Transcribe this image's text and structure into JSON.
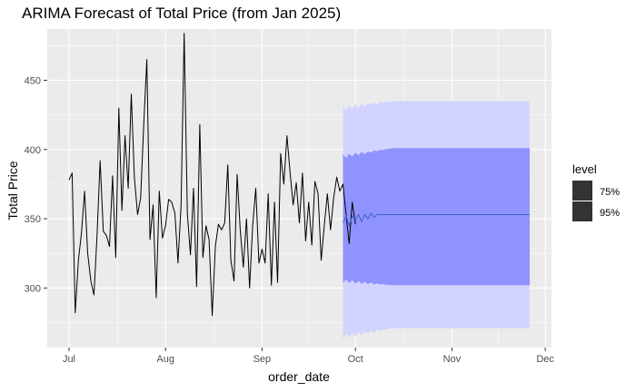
{
  "chart_data": {
    "type": "line",
    "title": "ARIMA Forecast of Total Price (from Jan 2025)",
    "xlabel": "order_date",
    "ylabel": "Total Price",
    "x_ticks": [
      {
        "label": "Jul",
        "date": "2025-07-01"
      },
      {
        "label": "Aug",
        "date": "2025-08-01"
      },
      {
        "label": "Sep",
        "date": "2025-09-01"
      },
      {
        "label": "Oct",
        "date": "2025-10-01"
      },
      {
        "label": "Nov",
        "date": "2025-11-01"
      },
      {
        "label": "Dec",
        "date": "2025-12-01"
      }
    ],
    "y_ticks": [
      300,
      350,
      400,
      450
    ],
    "xlim": [
      "2025-06-24",
      "2025-12-03"
    ],
    "ylim": [
      257,
      487
    ],
    "grid": true,
    "legend": {
      "title": "level",
      "placement": "right",
      "entries": [
        {
          "label": "75%",
          "color": "#8f93ff"
        },
        {
          "label": "95%",
          "color": "#d3d3ff"
        }
      ]
    },
    "series": [
      {
        "type": "line",
        "color": "#000000",
        "start_date": "2025-07-01",
        "values": [
          378,
          383,
          282,
          320,
          340,
          370,
          325,
          305,
          295,
          338,
          392,
          341,
          338,
          330,
          381,
          322,
          430,
          356,
          410,
          372,
          440,
          380,
          353,
          365,
          418,
          465,
          335,
          360,
          293,
          370,
          336,
          345,
          364,
          362,
          354,
          318,
          360,
          484,
          354,
          324,
          372,
          301,
          418,
          322,
          345,
          335,
          280,
          330,
          346,
          342,
          347,
          389,
          320,
          305,
          382,
          342,
          315,
          350,
          300,
          345,
          372,
          318,
          328,
          318,
          368,
          302,
          362,
          304,
          397,
          375,
          410,
          384,
          360,
          376,
          347,
          383,
          334,
          362,
          331,
          377,
          368,
          320,
          345,
          368,
          342,
          365,
          380,
          370,
          375,
          353,
          332,
          362,
          346
        ]
      },
      {
        "type": "forecast",
        "color": "#3b63c8",
        "start_date": "2025-09-27",
        "end_date": "2025-11-26",
        "values": [
          347,
          352,
          345,
          352,
          349,
          353,
          348,
          353,
          350,
          354,
          351,
          353,
          353
        ],
        "steady_value": 353,
        "lower_75": 302,
        "upper_75": 401,
        "lower_95": 271,
        "upper_95": 435,
        "lower_95_start": 265,
        "upper_95_start": 430
      }
    ]
  }
}
